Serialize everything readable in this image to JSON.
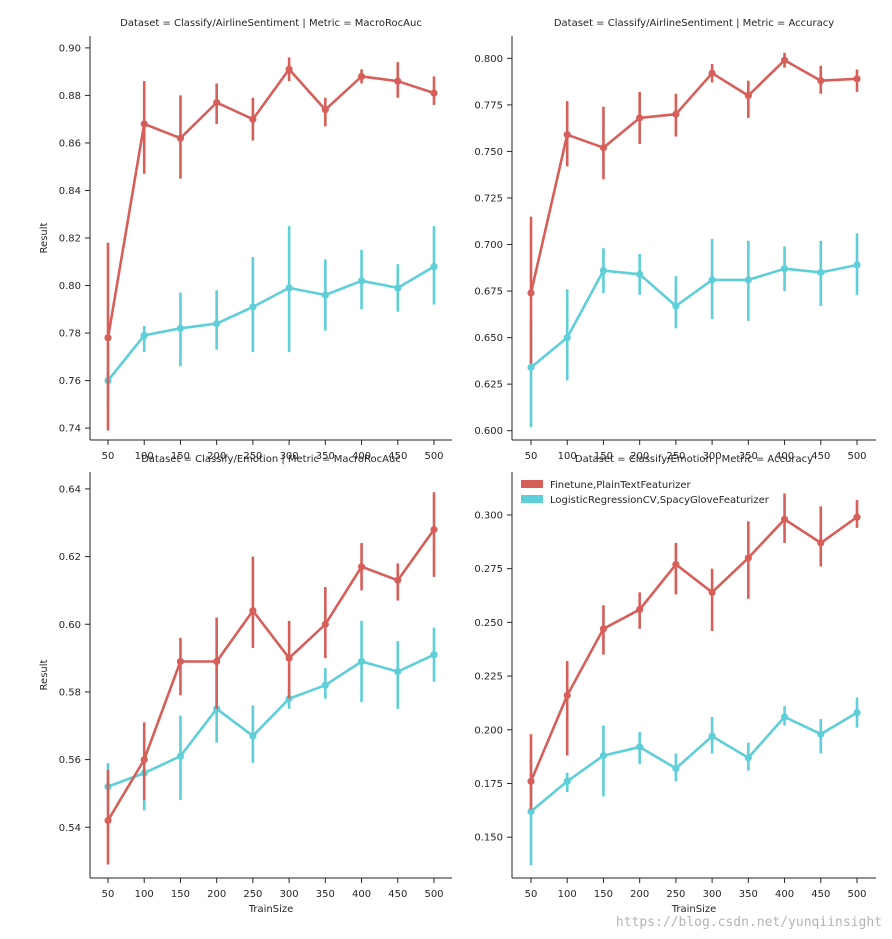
{
  "colors": {
    "finetune": "#d65f5a",
    "logreg": "#5ecfd9"
  },
  "legend": {
    "items": [
      {
        "label": "Finetune,PlainTextFeaturizer",
        "color": "#d65f5a"
      },
      {
        "label": "LogisticRegressionCV,SpacyGloveFeaturizer",
        "color": "#5ecfd9"
      }
    ]
  },
  "watermark": "https://blog.csdn.net/yunqiinsight",
  "chart_data": [
    {
      "type": "line",
      "title": "Dataset = Classify/AirlineSentiment | Metric = MacroRocAuc",
      "ylabel": "Result",
      "xlabel": "",
      "categories": [
        "50",
        "100",
        "150",
        "200",
        "250",
        "300",
        "350",
        "400",
        "450",
        "500"
      ],
      "ylim": [
        0.735,
        0.905
      ],
      "yticks": [
        "0.74",
        "0.76",
        "0.78",
        "0.80",
        "0.82",
        "0.84",
        "0.86",
        "0.88",
        "0.90"
      ],
      "series": [
        {
          "name": "Finetune,PlainTextFeaturizer",
          "color": "#d65f5a",
          "values": [
            0.778,
            0.868,
            0.862,
            0.877,
            0.87,
            0.891,
            0.874,
            0.888,
            0.886,
            0.881
          ],
          "err_low": [
            0.739,
            0.847,
            0.845,
            0.868,
            0.861,
            0.886,
            0.867,
            0.885,
            0.879,
            0.876
          ],
          "err_high": [
            0.818,
            0.886,
            0.88,
            0.885,
            0.879,
            0.896,
            0.879,
            0.891,
            0.894,
            0.888
          ]
        },
        {
          "name": "LogisticRegressionCV,SpacyGloveFeaturizer",
          "color": "#5ecfd9",
          "values": [
            0.76,
            0.779,
            0.782,
            0.784,
            0.791,
            0.799,
            0.796,
            0.802,
            0.799,
            0.808
          ],
          "err_low": [
            0.749,
            0.772,
            0.766,
            0.773,
            0.772,
            0.772,
            0.781,
            0.79,
            0.789,
            0.792
          ],
          "err_high": [
            0.773,
            0.783,
            0.797,
            0.798,
            0.812,
            0.825,
            0.811,
            0.815,
            0.809,
            0.825
          ]
        }
      ]
    },
    {
      "type": "line",
      "title": "Dataset = Classify/AirlineSentiment | Metric = Accuracy",
      "ylabel": "",
      "xlabel": "",
      "categories": [
        "50",
        "100",
        "150",
        "200",
        "250",
        "300",
        "350",
        "400",
        "450",
        "500"
      ],
      "ylim": [
        0.595,
        0.812
      ],
      "yticks": [
        "0.600",
        "0.625",
        "0.650",
        "0.675",
        "0.700",
        "0.725",
        "0.750",
        "0.775",
        "0.800"
      ],
      "series": [
        {
          "name": "Finetune,PlainTextFeaturizer",
          "color": "#d65f5a",
          "values": [
            0.674,
            0.759,
            0.752,
            0.768,
            0.77,
            0.792,
            0.78,
            0.799,
            0.788,
            0.789
          ],
          "err_low": [
            0.636,
            0.742,
            0.735,
            0.754,
            0.758,
            0.787,
            0.768,
            0.795,
            0.781,
            0.782
          ],
          "err_high": [
            0.715,
            0.777,
            0.774,
            0.782,
            0.781,
            0.797,
            0.788,
            0.803,
            0.796,
            0.794
          ]
        },
        {
          "name": "LogisticRegressionCV,SpacyGloveFeaturizer",
          "color": "#5ecfd9",
          "values": [
            0.634,
            0.65,
            0.686,
            0.684,
            0.667,
            0.681,
            0.681,
            0.687,
            0.685,
            0.689
          ],
          "err_low": [
            0.602,
            0.627,
            0.674,
            0.673,
            0.655,
            0.66,
            0.659,
            0.675,
            0.667,
            0.673
          ],
          "err_high": [
            0.658,
            0.676,
            0.698,
            0.695,
            0.683,
            0.703,
            0.702,
            0.699,
            0.702,
            0.706
          ]
        }
      ]
    },
    {
      "type": "line",
      "title": "Dataset = Classify/Emotion | Metric = MacroRocAuc",
      "ylabel": "Result",
      "xlabel": "TrainSize",
      "categories": [
        "50",
        "100",
        "150",
        "200",
        "250",
        "300",
        "350",
        "400",
        "450",
        "500"
      ],
      "ylim": [
        0.525,
        0.645
      ],
      "yticks": [
        "0.54",
        "0.56",
        "0.58",
        "0.60",
        "0.62",
        "0.64"
      ],
      "series": [
        {
          "name": "Finetune,PlainTextFeaturizer",
          "color": "#d65f5a",
          "values": [
            0.542,
            0.56,
            0.589,
            0.589,
            0.604,
            0.59,
            0.6,
            0.617,
            0.613,
            0.628
          ],
          "err_low": [
            0.529,
            0.548,
            0.579,
            0.575,
            0.593,
            0.578,
            0.59,
            0.61,
            0.607,
            0.614
          ],
          "err_high": [
            0.557,
            0.571,
            0.596,
            0.602,
            0.62,
            0.601,
            0.611,
            0.624,
            0.618,
            0.639
          ]
        },
        {
          "name": "LogisticRegressionCV,SpacyGloveFeaturizer",
          "color": "#5ecfd9",
          "values": [
            0.552,
            0.556,
            0.561,
            0.575,
            0.567,
            0.578,
            0.582,
            0.589,
            0.586,
            0.591
          ],
          "err_low": [
            0.545,
            0.545,
            0.548,
            0.565,
            0.559,
            0.575,
            0.578,
            0.577,
            0.575,
            0.583
          ],
          "err_high": [
            0.559,
            0.569,
            0.573,
            0.587,
            0.576,
            0.581,
            0.587,
            0.601,
            0.595,
            0.599
          ]
        }
      ]
    },
    {
      "type": "line",
      "title": "Dataset = Classify/Emotion | Metric = Accuracy",
      "ylabel": "",
      "xlabel": "TrainSize",
      "categories": [
        "50",
        "100",
        "150",
        "200",
        "250",
        "300",
        "350",
        "400",
        "450",
        "500"
      ],
      "ylim": [
        0.131,
        0.32
      ],
      "yticks": [
        "0.150",
        "0.175",
        "0.200",
        "0.225",
        "0.250",
        "0.275",
        "0.300"
      ],
      "legend_position": "top-left",
      "series": [
        {
          "name": "Finetune,PlainTextFeaturizer",
          "color": "#d65f5a",
          "values": [
            0.176,
            0.216,
            0.247,
            0.256,
            0.277,
            0.264,
            0.28,
            0.298,
            0.287,
            0.299
          ],
          "err_low": [
            0.163,
            0.188,
            0.235,
            0.247,
            0.263,
            0.246,
            0.261,
            0.287,
            0.276,
            0.294
          ],
          "err_high": [
            0.198,
            0.232,
            0.258,
            0.264,
            0.287,
            0.275,
            0.297,
            0.31,
            0.304,
            0.307
          ]
        },
        {
          "name": "LogisticRegressionCV,SpacyGloveFeaturizer",
          "color": "#5ecfd9",
          "values": [
            0.162,
            0.176,
            0.188,
            0.192,
            0.182,
            0.197,
            0.187,
            0.206,
            0.198,
            0.208
          ],
          "err_low": [
            0.137,
            0.171,
            0.169,
            0.184,
            0.176,
            0.189,
            0.181,
            0.202,
            0.189,
            0.201
          ],
          "err_high": [
            0.187,
            0.18,
            0.202,
            0.199,
            0.189,
            0.206,
            0.194,
            0.211,
            0.205,
            0.215
          ]
        }
      ]
    }
  ]
}
